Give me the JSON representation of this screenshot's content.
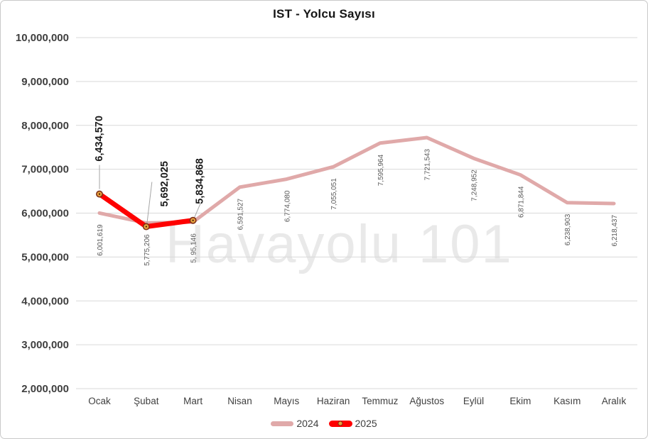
{
  "chart_data": {
    "type": "line",
    "title": "IST - Yolcu Sayısı",
    "xlabel": "",
    "ylabel": "",
    "categories": [
      "Ocak",
      "Şubat",
      "Mart",
      "Nisan",
      "Mayıs",
      "Haziran",
      "Temmuz",
      "Ağustos",
      "Eylül",
      "Ekim",
      "Kasım",
      "Aralık"
    ],
    "series": [
      {
        "name": "2024",
        "color": "#e0a9a9",
        "values": [
          6001619,
          5775206,
          5795146,
          6591527,
          6774080,
          7055051,
          7595964,
          7721543,
          7248952,
          6871844,
          6238903,
          6218437
        ],
        "labels": [
          "6,001,619",
          "5,775,206",
          "5, 95,146",
          "6,591,527",
          "6,774,080",
          "7,055,051",
          "7,595,964",
          "7,721,543",
          "7,248,952",
          "6,871,844",
          "6,238,903",
          "6,218,437"
        ]
      },
      {
        "name": "2025",
        "color": "#fe0000",
        "values": [
          6434570,
          5692025,
          5834868
        ],
        "labels": [
          "6,434,570",
          "5,692,025",
          "5,834,868"
        ]
      }
    ],
    "ylim": [
      2000000,
      10000000
    ],
    "yticks": [
      {
        "value": 10000000,
        "label": "10,000,000"
      },
      {
        "value": 9000000,
        "label": "9,000,000"
      },
      {
        "value": 8000000,
        "label": "8,000,000"
      },
      {
        "value": 7000000,
        "label": "7,000,000"
      },
      {
        "value": 6000000,
        "label": "6,000,000"
      },
      {
        "value": 5000000,
        "label": "5,000,000"
      },
      {
        "value": 4000000,
        "label": "4,000,000"
      },
      {
        "value": 3000000,
        "label": "3,000,000"
      },
      {
        "value": 2000000,
        "label": "2,000,000"
      }
    ],
    "grid": true,
    "legend_position": "bottom",
    "gridline_color": "#d9d9d9",
    "marker_fill": "#e8a33d",
    "marker_ring": "#7e2f17",
    "marker_core": "#3d1200",
    "leader_color": "#a6a6a6"
  },
  "watermark": {
    "text": "Havayolu 101"
  }
}
